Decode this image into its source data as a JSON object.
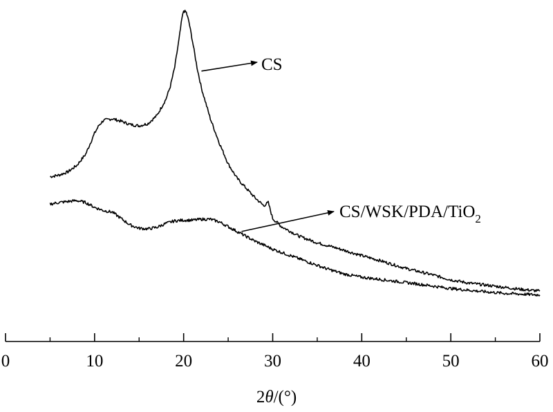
{
  "chart_data": {
    "type": "line",
    "title": "",
    "xlabel": "2θ/(°)",
    "xlabel_parts": {
      "pre": "2",
      "theta": "θ",
      "post": "/(°)"
    },
    "ylabel": "",
    "xlim": [
      0,
      60
    ],
    "ylim": [
      0,
      100
    ],
    "y_axis_visible": false,
    "grid": false,
    "x_ticks": [
      0,
      10,
      20,
      30,
      40,
      50,
      60
    ],
    "x_tick_labels": [
      "0",
      "10",
      "20",
      "30",
      "40",
      "50",
      "60"
    ],
    "line_color": "#000000",
    "series": [
      {
        "name": "CS",
        "label_text": "CS",
        "label_pointer_at": [
          22.0,
          78.8
        ],
        "points": [
          [
            5,
            46.0
          ],
          [
            6,
            46.5
          ],
          [
            7,
            47.5
          ],
          [
            8,
            49.5
          ],
          [
            9,
            53.0
          ],
          [
            10,
            59.5
          ],
          [
            10.5,
            62.0
          ],
          [
            11,
            63.5
          ],
          [
            12,
            64.0
          ],
          [
            13,
            63.2
          ],
          [
            14,
            62.2
          ],
          [
            15,
            61.8
          ],
          [
            16,
            62.5
          ],
          [
            17,
            65.0
          ],
          [
            18,
            70.0
          ],
          [
            18.5,
            74.0
          ],
          [
            19,
            80.0
          ],
          [
            19.5,
            89.0
          ],
          [
            19.8,
            95.0
          ],
          [
            20,
            97.5
          ],
          [
            20.3,
            97.0
          ],
          [
            20.6,
            94.0
          ],
          [
            21,
            88.0
          ],
          [
            21.5,
            80.0
          ],
          [
            22,
            73.5
          ],
          [
            23,
            64.0
          ],
          [
            24,
            56.5
          ],
          [
            25,
            50.0
          ],
          [
            26,
            45.5
          ],
          [
            27,
            42.5
          ],
          [
            28,
            39.5
          ],
          [
            29,
            37.0
          ],
          [
            29.5,
            38.0
          ],
          [
            30,
            33.0
          ],
          [
            31,
            30.5
          ],
          [
            32,
            29.0
          ],
          [
            33,
            27.5
          ],
          [
            35,
            25.5
          ],
          [
            37,
            24.0
          ],
          [
            40,
            21.5
          ],
          [
            42,
            20.0
          ],
          [
            45,
            17.5
          ],
          [
            48,
            15.5
          ],
          [
            50,
            14.0
          ],
          [
            52,
            13.0
          ],
          [
            55,
            12.0
          ],
          [
            58,
            11.0
          ],
          [
            60,
            10.5
          ]
        ]
      },
      {
        "name": "CS/WSK/PDA/TiO2",
        "label_text": "CS/WSK/PDA/TiO",
        "label_subscript": "2",
        "label_pointer_at": [
          26.5,
          29.0
        ],
        "points": [
          [
            5,
            37.5
          ],
          [
            6,
            38.0
          ],
          [
            7,
            38.3
          ],
          [
            8,
            38.6
          ],
          [
            9,
            38.0
          ],
          [
            10,
            36.5
          ],
          [
            11,
            35.5
          ],
          [
            12,
            35.0
          ],
          [
            13,
            33.0
          ],
          [
            14,
            31.0
          ],
          [
            15,
            30.0
          ],
          [
            16,
            29.8
          ],
          [
            17,
            30.3
          ],
          [
            18,
            31.5
          ],
          [
            19,
            32.3
          ],
          [
            20,
            32.5
          ],
          [
            21,
            32.5
          ],
          [
            22,
            32.8
          ],
          [
            23,
            32.8
          ],
          [
            24,
            32.0
          ],
          [
            25,
            30.5
          ],
          [
            26,
            29.0
          ],
          [
            27,
            27.5
          ],
          [
            28,
            26.0
          ],
          [
            29,
            24.8
          ],
          [
            30,
            23.5
          ],
          [
            32,
            21.5
          ],
          [
            34,
            19.5
          ],
          [
            36,
            17.5
          ],
          [
            38,
            15.8
          ],
          [
            40,
            14.8
          ],
          [
            43,
            13.8
          ],
          [
            46,
            12.8
          ],
          [
            50,
            11.3
          ],
          [
            53,
            10.5
          ],
          [
            56,
            9.8
          ],
          [
            60,
            9.3
          ]
        ]
      }
    ]
  }
}
